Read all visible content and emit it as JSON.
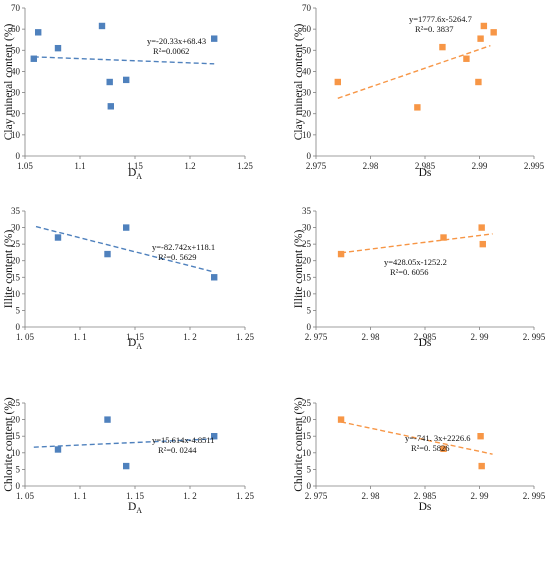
{
  "colors": {
    "blue": "#4f81bd",
    "orange": "#f79646",
    "axis": "#7f7f7f"
  },
  "chart_data": [
    {
      "type": "scatter",
      "panel": "a",
      "xlabel": "D",
      "xlabel_sub": "A",
      "ylabel": "Clay mineral content (%)",
      "xlim": [
        1.05,
        1.25
      ],
      "xticks": [
        "1.05",
        "1.1",
        "1.15",
        "1.2",
        "1.25"
      ],
      "xtick_values": [
        1.05,
        1.1,
        1.15,
        1.2,
        1.25
      ],
      "ylim": [
        0,
        70
      ],
      "yticks": [
        "0",
        "10",
        "20",
        "30",
        "40",
        "50",
        "60",
        "70"
      ],
      "ytick_values": [
        0,
        10,
        20,
        30,
        40,
        50,
        60,
        70
      ],
      "color": "#4f81bd",
      "points": [
        {
          "x": 1.058,
          "y": 46
        },
        {
          "x": 1.062,
          "y": 58.5
        },
        {
          "x": 1.08,
          "y": 51
        },
        {
          "x": 1.12,
          "y": 61.5
        },
        {
          "x": 1.127,
          "y": 35
        },
        {
          "x": 1.128,
          "y": 23.5
        },
        {
          "x": 1.142,
          "y": 36
        },
        {
          "x": 1.222,
          "y": 55.5
        }
      ],
      "trend": {
        "x": [
          1.058,
          1.222
        ],
        "y": [
          46.9,
          43.6
        ]
      },
      "equation": "y=-20.33x+68.43",
      "r2": "R²=0.0062"
    },
    {
      "type": "scatter",
      "panel": "b",
      "xlabel": "Ds",
      "ylabel": "Clay mineral content (%)",
      "xlim": [
        2.975,
        2.995
      ],
      "xticks": [
        "2.975",
        "2.98",
        "2.985",
        "2.99",
        "2.995"
      ],
      "xtick_values": [
        2.975,
        2.98,
        2.985,
        2.99,
        2.995
      ],
      "ylim": [
        0,
        70
      ],
      "yticks": [
        "0",
        "10",
        "20",
        "30",
        "40",
        "50",
        "60",
        "70"
      ],
      "ytick_values": [
        0,
        10,
        20,
        30,
        40,
        50,
        60,
        70
      ],
      "color": "#f79646",
      "points": [
        {
          "x": 2.977,
          "y": 35
        },
        {
          "x": 2.9843,
          "y": 23
        },
        {
          "x": 2.9866,
          "y": 51.5
        },
        {
          "x": 2.9888,
          "y": 46
        },
        {
          "x": 2.9899,
          "y": 35
        },
        {
          "x": 2.9901,
          "y": 55.5
        },
        {
          "x": 2.9904,
          "y": 61.5
        },
        {
          "x": 2.9913,
          "y": 58.5
        }
      ],
      "trend": {
        "x": [
          2.977,
          2.991
        ],
        "y": [
          27.3,
          52.2
        ]
      },
      "equation": "y=1777.6x-5264.7",
      "r2": "R²=0. 3837"
    },
    {
      "type": "scatter",
      "panel": "c",
      "xlabel": "D",
      "xlabel_sub": "A",
      "ylabel": "Illite content (%)",
      "xlim": [
        1.05,
        1.25
      ],
      "xticks": [
        "1. 05",
        "1. 1",
        "1. 15",
        "1. 2",
        "1. 25"
      ],
      "xtick_values": [
        1.05,
        1.1,
        1.15,
        1.2,
        1.25
      ],
      "ylim": [
        0,
        35
      ],
      "yticks": [
        "0",
        "5",
        "10",
        "15",
        "20",
        "25",
        "30",
        "35"
      ],
      "ytick_values": [
        0,
        5,
        10,
        15,
        20,
        25,
        30,
        35
      ],
      "color": "#4f81bd",
      "points": [
        {
          "x": 1.08,
          "y": 27
        },
        {
          "x": 1.125,
          "y": 22
        },
        {
          "x": 1.142,
          "y": 30
        },
        {
          "x": 1.222,
          "y": 15
        }
      ],
      "trend": {
        "x": [
          1.06,
          1.222
        ],
        "y": [
          30.3,
          16.6
        ]
      },
      "equation": "y=-82.742x+118.1",
      "r2": "R²=0. 5629"
    },
    {
      "type": "scatter",
      "panel": "d",
      "xlabel": "Ds",
      "ylabel": "Illite content (%)",
      "xlim": [
        2.975,
        2.995
      ],
      "xticks": [
        "2. 975",
        "2. 98",
        "2. 985",
        "2. 99",
        "2. 995"
      ],
      "xtick_values": [
        2.975,
        2.98,
        2.985,
        2.99,
        2.995
      ],
      "ylim": [
        0,
        35
      ],
      "yticks": [
        "0",
        "5",
        "10",
        "15",
        "20",
        "25",
        "30",
        "35"
      ],
      "ytick_values": [
        0,
        5,
        10,
        15,
        20,
        25,
        30,
        35
      ],
      "color": "#f79646",
      "points": [
        {
          "x": 2.9773,
          "y": 22
        },
        {
          "x": 2.9867,
          "y": 27
        },
        {
          "x": 2.9902,
          "y": 30
        },
        {
          "x": 2.9903,
          "y": 25
        }
      ],
      "trend": {
        "x": [
          2.9773,
          2.9912
        ],
        "y": [
          22.4,
          28.1
        ]
      },
      "equation": "y=428.05x-1252.2",
      "r2": "R²=0. 6056"
    },
    {
      "type": "scatter",
      "panel": "e",
      "xlabel": "D",
      "xlabel_sub": "A",
      "ylabel": "Chlorite content (%)",
      "xlim": [
        1.05,
        1.25
      ],
      "xticks": [
        "1. 05",
        "1. 1",
        "1. 15",
        "1. 2",
        "1. 25"
      ],
      "xtick_values": [
        1.05,
        1.1,
        1.15,
        1.2,
        1.25
      ],
      "ylim": [
        0,
        25
      ],
      "yticks": [
        "0",
        "5",
        "10",
        "15",
        "20",
        "25"
      ],
      "ytick_values": [
        0,
        5,
        10,
        15,
        20,
        25
      ],
      "color": "#4f81bd",
      "points": [
        {
          "x": 1.08,
          "y": 11
        },
        {
          "x": 1.125,
          "y": 20
        },
        {
          "x": 1.142,
          "y": 6
        },
        {
          "x": 1.222,
          "y": 15
        }
      ],
      "trend": {
        "x": [
          1.058,
          1.222
        ],
        "y": [
          11.7,
          14.2
        ]
      },
      "equation": "y=15.614x-4.8511",
      "r2": "R²=0. 0244"
    },
    {
      "type": "scatter",
      "panel": "f",
      "xlabel": "Ds",
      "ylabel": "Chlorite content (%)",
      "xlim": [
        2.975,
        2.995
      ],
      "xticks": [
        "2. 975",
        "2. 98",
        "2. 985",
        "2. 99",
        "2. 995"
      ],
      "xtick_values": [
        2.975,
        2.98,
        2.985,
        2.99,
        2.995
      ],
      "ylim": [
        0,
        25
      ],
      "yticks": [
        "0",
        "5",
        "10",
        "15",
        "20",
        "25"
      ],
      "ytick_values": [
        0,
        5,
        10,
        15,
        20,
        25
      ],
      "color": "#f79646",
      "points": [
        {
          "x": 2.9773,
          "y": 20
        },
        {
          "x": 2.9867,
          "y": 11.2
        },
        {
          "x": 2.9901,
          "y": 15
        },
        {
          "x": 2.9902,
          "y": 6
        }
      ],
      "trend": {
        "x": [
          2.9773,
          2.9912
        ],
        "y": [
          19.3,
          9.6
        ]
      },
      "equation": "y=-741. 3x+2226.6",
      "r2": "R²=0. 5826"
    }
  ]
}
